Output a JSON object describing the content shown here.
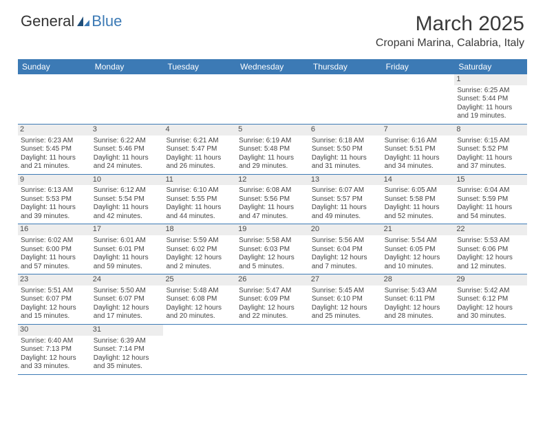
{
  "logo": {
    "part1": "General",
    "part2": "Blue"
  },
  "title": {
    "month": "March 2025",
    "location": "Cropani Marina, Calabria, Italy"
  },
  "colors": {
    "header_bg": "#3c7ab5",
    "daynum_bg": "#ededed",
    "text": "#444444"
  },
  "day_headers": [
    "Sunday",
    "Monday",
    "Tuesday",
    "Wednesday",
    "Thursday",
    "Friday",
    "Saturday"
  ],
  "weeks": [
    [
      null,
      null,
      null,
      null,
      null,
      null,
      {
        "n": "1",
        "sr": "Sunrise: 6:25 AM",
        "ss": "Sunset: 5:44 PM",
        "dl": "Daylight: 11 hours and 19 minutes."
      }
    ],
    [
      {
        "n": "2",
        "sr": "Sunrise: 6:23 AM",
        "ss": "Sunset: 5:45 PM",
        "dl": "Daylight: 11 hours and 21 minutes."
      },
      {
        "n": "3",
        "sr": "Sunrise: 6:22 AM",
        "ss": "Sunset: 5:46 PM",
        "dl": "Daylight: 11 hours and 24 minutes."
      },
      {
        "n": "4",
        "sr": "Sunrise: 6:21 AM",
        "ss": "Sunset: 5:47 PM",
        "dl": "Daylight: 11 hours and 26 minutes."
      },
      {
        "n": "5",
        "sr": "Sunrise: 6:19 AM",
        "ss": "Sunset: 5:48 PM",
        "dl": "Daylight: 11 hours and 29 minutes."
      },
      {
        "n": "6",
        "sr": "Sunrise: 6:18 AM",
        "ss": "Sunset: 5:50 PM",
        "dl": "Daylight: 11 hours and 31 minutes."
      },
      {
        "n": "7",
        "sr": "Sunrise: 6:16 AM",
        "ss": "Sunset: 5:51 PM",
        "dl": "Daylight: 11 hours and 34 minutes."
      },
      {
        "n": "8",
        "sr": "Sunrise: 6:15 AM",
        "ss": "Sunset: 5:52 PM",
        "dl": "Daylight: 11 hours and 37 minutes."
      }
    ],
    [
      {
        "n": "9",
        "sr": "Sunrise: 6:13 AM",
        "ss": "Sunset: 5:53 PM",
        "dl": "Daylight: 11 hours and 39 minutes."
      },
      {
        "n": "10",
        "sr": "Sunrise: 6:12 AM",
        "ss": "Sunset: 5:54 PM",
        "dl": "Daylight: 11 hours and 42 minutes."
      },
      {
        "n": "11",
        "sr": "Sunrise: 6:10 AM",
        "ss": "Sunset: 5:55 PM",
        "dl": "Daylight: 11 hours and 44 minutes."
      },
      {
        "n": "12",
        "sr": "Sunrise: 6:08 AM",
        "ss": "Sunset: 5:56 PM",
        "dl": "Daylight: 11 hours and 47 minutes."
      },
      {
        "n": "13",
        "sr": "Sunrise: 6:07 AM",
        "ss": "Sunset: 5:57 PM",
        "dl": "Daylight: 11 hours and 49 minutes."
      },
      {
        "n": "14",
        "sr": "Sunrise: 6:05 AM",
        "ss": "Sunset: 5:58 PM",
        "dl": "Daylight: 11 hours and 52 minutes."
      },
      {
        "n": "15",
        "sr": "Sunrise: 6:04 AM",
        "ss": "Sunset: 5:59 PM",
        "dl": "Daylight: 11 hours and 54 minutes."
      }
    ],
    [
      {
        "n": "16",
        "sr": "Sunrise: 6:02 AM",
        "ss": "Sunset: 6:00 PM",
        "dl": "Daylight: 11 hours and 57 minutes."
      },
      {
        "n": "17",
        "sr": "Sunrise: 6:01 AM",
        "ss": "Sunset: 6:01 PM",
        "dl": "Daylight: 11 hours and 59 minutes."
      },
      {
        "n": "18",
        "sr": "Sunrise: 5:59 AM",
        "ss": "Sunset: 6:02 PM",
        "dl": "Daylight: 12 hours and 2 minutes."
      },
      {
        "n": "19",
        "sr": "Sunrise: 5:58 AM",
        "ss": "Sunset: 6:03 PM",
        "dl": "Daylight: 12 hours and 5 minutes."
      },
      {
        "n": "20",
        "sr": "Sunrise: 5:56 AM",
        "ss": "Sunset: 6:04 PM",
        "dl": "Daylight: 12 hours and 7 minutes."
      },
      {
        "n": "21",
        "sr": "Sunrise: 5:54 AM",
        "ss": "Sunset: 6:05 PM",
        "dl": "Daylight: 12 hours and 10 minutes."
      },
      {
        "n": "22",
        "sr": "Sunrise: 5:53 AM",
        "ss": "Sunset: 6:06 PM",
        "dl": "Daylight: 12 hours and 12 minutes."
      }
    ],
    [
      {
        "n": "23",
        "sr": "Sunrise: 5:51 AM",
        "ss": "Sunset: 6:07 PM",
        "dl": "Daylight: 12 hours and 15 minutes."
      },
      {
        "n": "24",
        "sr": "Sunrise: 5:50 AM",
        "ss": "Sunset: 6:07 PM",
        "dl": "Daylight: 12 hours and 17 minutes."
      },
      {
        "n": "25",
        "sr": "Sunrise: 5:48 AM",
        "ss": "Sunset: 6:08 PM",
        "dl": "Daylight: 12 hours and 20 minutes."
      },
      {
        "n": "26",
        "sr": "Sunrise: 5:47 AM",
        "ss": "Sunset: 6:09 PM",
        "dl": "Daylight: 12 hours and 22 minutes."
      },
      {
        "n": "27",
        "sr": "Sunrise: 5:45 AM",
        "ss": "Sunset: 6:10 PM",
        "dl": "Daylight: 12 hours and 25 minutes."
      },
      {
        "n": "28",
        "sr": "Sunrise: 5:43 AM",
        "ss": "Sunset: 6:11 PM",
        "dl": "Daylight: 12 hours and 28 minutes."
      },
      {
        "n": "29",
        "sr": "Sunrise: 5:42 AM",
        "ss": "Sunset: 6:12 PM",
        "dl": "Daylight: 12 hours and 30 minutes."
      }
    ],
    [
      {
        "n": "30",
        "sr": "Sunrise: 6:40 AM",
        "ss": "Sunset: 7:13 PM",
        "dl": "Daylight: 12 hours and 33 minutes."
      },
      {
        "n": "31",
        "sr": "Sunrise: 6:39 AM",
        "ss": "Sunset: 7:14 PM",
        "dl": "Daylight: 12 hours and 35 minutes."
      },
      null,
      null,
      null,
      null,
      null
    ]
  ]
}
